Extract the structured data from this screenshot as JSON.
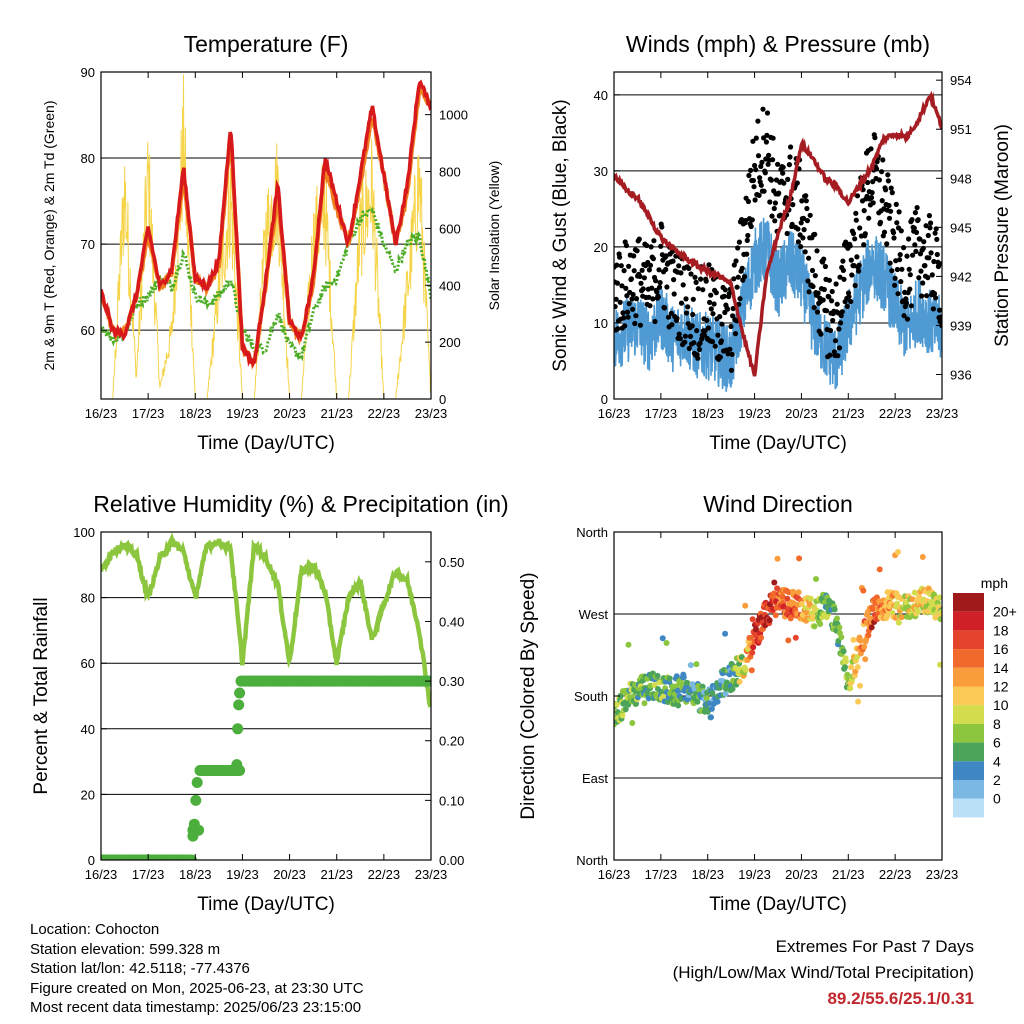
{
  "colors": {
    "t2m": "#d7191c",
    "t9m": "#f07f1e",
    "td2m": "#4dac26",
    "solar": "#f6d44a",
    "wind": "#4f9ad2",
    "gust": "#000000",
    "pressure": "#a51d22",
    "rh": "#8cc63f",
    "precip": "#4cae3c",
    "extremes": "#c1272d"
  },
  "x_ticks": [
    "16/23",
    "17/23",
    "18/23",
    "19/23",
    "20/23",
    "21/23",
    "22/23",
    "23/23"
  ],
  "xlabel": "Time (Day/UTC)",
  "panels": {
    "temperature": {
      "title": "Temperature (F)",
      "ylabel_left": "2m & 9m T (Red, Orange) & 2m Td (Green)",
      "ylabel_right": "Solar Insolation (Yellow)",
      "yticks_left": [
        "60",
        "70",
        "80",
        "90"
      ],
      "yticks_right": [
        "0",
        "200",
        "400",
        "600",
        "800",
        "1000"
      ]
    },
    "winds": {
      "title": "Winds (mph) & Pressure (mb)",
      "ylabel_left": "Sonic Wind & Gust (Blue, Black)",
      "ylabel_right": "Station Pressure (Maroon)",
      "yticks_left": [
        "0",
        "10",
        "20",
        "30",
        "40"
      ],
      "yticks_right": [
        "936",
        "939",
        "942",
        "945",
        "948",
        "951",
        "954"
      ]
    },
    "humidity": {
      "title": "Relative Humidity (%) & Precipitation (in)",
      "ylabel_left": "Percent & Total Rainfall",
      "yticks_left": [
        "0",
        "20",
        "40",
        "60",
        "80",
        "100"
      ],
      "yticks_right": [
        "0.00",
        "0.10",
        "0.20",
        "0.30",
        "0.40",
        "0.50"
      ]
    },
    "direction": {
      "title": "Wind Direction",
      "ylabel_left": "Direction (Colored By Speed)",
      "yticks_left": [
        "North",
        "East",
        "South",
        "West",
        "North"
      ],
      "colorbar_title": "mph",
      "colorbar_labels": [
        "20+",
        "18",
        "16",
        "14",
        "12",
        "10",
        "8",
        "6",
        "4",
        "2",
        "0"
      ],
      "colorbar_colors": [
        "#a01a1c",
        "#cf2127",
        "#e4442b",
        "#f2692c",
        "#f99c3b",
        "#fbc956",
        "#d3dc4c",
        "#8cc63f",
        "#4ca45a",
        "#3f87c2",
        "#7bb8e3",
        "#b9e0f7"
      ]
    }
  },
  "chart_data": [
    {
      "type": "line",
      "title": "Temperature (F)",
      "xlabel": "Time (Day/UTC)",
      "ylabel": "2m & 9m T (Red, Orange) & 2m Td (Green)",
      "y2label": "Solar Insolation (Yellow)",
      "x": [
        16.0,
        16.25,
        16.5,
        16.75,
        17.0,
        17.25,
        17.5,
        17.75,
        18.0,
        18.25,
        18.5,
        18.75,
        19.0,
        19.25,
        19.5,
        19.75,
        20.0,
        20.25,
        20.5,
        20.75,
        21.0,
        21.25,
        21.5,
        21.75,
        22.0,
        22.25,
        22.5,
        22.75,
        23.0
      ],
      "ylim": [
        52,
        90
      ],
      "y2lim": [
        0,
        1150
      ],
      "series": [
        {
          "name": "2m T",
          "values": [
            64.5,
            60,
            59.5,
            64,
            72,
            65,
            67,
            79,
            66,
            65,
            68,
            84,
            58,
            56,
            66,
            77,
            61,
            59,
            66,
            80,
            75,
            70,
            78,
            86,
            78,
            70,
            77,
            89,
            86
          ]
        },
        {
          "name": "9m T",
          "values": [
            64.5,
            60,
            59.5,
            64,
            71,
            65,
            66.5,
            78,
            66,
            65,
            67.5,
            83,
            58,
            56,
            65.5,
            76,
            61,
            59,
            65.5,
            79,
            74,
            70,
            77,
            85,
            78,
            70,
            76,
            88,
            86
          ]
        },
        {
          "name": "2m Td",
          "values": [
            60.5,
            59,
            59.5,
            63,
            64,
            66,
            65,
            69,
            64,
            63,
            64,
            66,
            60,
            58,
            58,
            62,
            58,
            57,
            62,
            65,
            66,
            70,
            73,
            74,
            70,
            67,
            70,
            71,
            64
          ]
        },
        {
          "name": "Solar Insolation",
          "values": [
            0,
            0,
            950,
            100,
            1000,
            50,
            300,
            1150,
            0,
            0,
            500,
            900,
            0,
            0,
            750,
            950,
            0,
            0,
            700,
            900,
            0,
            0,
            750,
            950,
            0,
            0,
            500,
            1000,
            0
          ]
        }
      ]
    },
    {
      "type": "scatter",
      "title": "Winds (mph) & Pressure (mb)",
      "xlabel": "Time (Day/UTC)",
      "ylabel": "Sonic Wind & Gust (Blue, Black)",
      "y2label": "Station Pressure (Maroon)",
      "x": [
        16.0,
        16.25,
        16.5,
        16.75,
        17.0,
        17.25,
        17.5,
        17.75,
        18.0,
        18.25,
        18.5,
        18.75,
        19.0,
        19.25,
        19.5,
        19.75,
        20.0,
        20.25,
        20.5,
        20.75,
        21.0,
        21.25,
        21.5,
        21.75,
        22.0,
        22.25,
        22.5,
        22.75,
        23.0
      ],
      "ylim": [
        0,
        43
      ],
      "y2lim": [
        934.5,
        954.5
      ],
      "series": [
        {
          "name": "Sonic Wind",
          "values": [
            8,
            9,
            10,
            8,
            11,
            8,
            9,
            7,
            7,
            6,
            5,
            12,
            18,
            20,
            15,
            18,
            16,
            10,
            7,
            5,
            10,
            14,
            18,
            16,
            12,
            9,
            12,
            10,
            9
          ]
        },
        {
          "name": "Gust",
          "values": [
            14,
            15,
            16,
            14,
            18,
            14,
            13,
            11,
            12,
            10,
            9,
            20,
            30,
            34,
            25,
            28,
            25,
            17,
            12,
            10,
            17,
            23,
            30,
            26,
            20,
            16,
            20,
            18,
            15
          ]
        },
        {
          "name": "Station Pressure",
          "values": [
            948.2,
            947.3,
            946.8,
            945.6,
            944.4,
            943.7,
            943.2,
            942.7,
            942.3,
            942.0,
            941.5,
            938.5,
            935.9,
            942,
            944.6,
            946.7,
            950.1,
            949.2,
            948.0,
            947.5,
            946.5,
            947.6,
            948.7,
            950.4,
            950.7,
            950.5,
            951.6,
            953.1,
            951.1
          ]
        }
      ]
    },
    {
      "type": "line",
      "title": "Relative Humidity (%) & Precipitation (in)",
      "xlabel": "Time (Day/UTC)",
      "ylabel": "Percent & Total Rainfall",
      "ylim": [
        0,
        100
      ],
      "y2lim": [
        0,
        0.55
      ],
      "x": [
        16.0,
        16.25,
        16.5,
        16.75,
        17.0,
        17.25,
        17.5,
        17.75,
        18.0,
        18.25,
        18.5,
        18.75,
        19.0,
        19.25,
        19.5,
        19.75,
        20.0,
        20.25,
        20.5,
        20.75,
        21.0,
        21.25,
        21.5,
        21.75,
        22.0,
        22.25,
        22.5,
        22.75,
        23.0
      ],
      "series": [
        {
          "name": "Relative Humidity",
          "values": [
            88,
            94,
            96,
            93,
            80,
            92,
            97,
            94,
            80,
            96,
            97,
            95,
            60,
            96,
            92,
            84,
            60,
            88,
            90,
            82,
            60,
            80,
            85,
            67,
            78,
            88,
            85,
            70,
            45
          ]
        },
        {
          "name": "Total Rainfall",
          "values": [
            0,
            0,
            0,
            0,
            0,
            0,
            0,
            0,
            0.05,
            0.15,
            0.15,
            0.15,
            0.3,
            0.3,
            0.3,
            0.3,
            0.3,
            0.3,
            0.3,
            0.3,
            0.3,
            0.3,
            0.3,
            0.3,
            0.3,
            0.3,
            0.3,
            0.3,
            0.3
          ]
        }
      ]
    },
    {
      "type": "scatter",
      "title": "Wind Direction",
      "xlabel": "Time (Day/UTC)",
      "ylabel": "Direction (Colored By Speed)",
      "yticks": [
        "North",
        "East",
        "South",
        "West",
        "North"
      ],
      "x": [
        16.0,
        16.25,
        16.5,
        16.75,
        17.0,
        17.25,
        17.5,
        17.75,
        18.0,
        18.25,
        18.5,
        18.75,
        19.0,
        19.25,
        19.5,
        19.75,
        20.0,
        20.25,
        20.5,
        20.75,
        21.0,
        21.25,
        21.5,
        21.75,
        22.0,
        22.25,
        22.5,
        22.75,
        23.0
      ],
      "ylim": [
        0,
        360
      ],
      "series": [
        {
          "name": "Direction",
          "values": [
            160,
            175,
            185,
            190,
            190,
            185,
            190,
            180,
            175,
            190,
            200,
            215,
            245,
            270,
            285,
            280,
            280,
            270,
            280,
            260,
            190,
            235,
            270,
            280,
            280,
            275,
            285,
            285,
            270
          ]
        },
        {
          "name": "Speed",
          "values": [
            8,
            8,
            7,
            6,
            7,
            6,
            6,
            5,
            5,
            4,
            5,
            10,
            18,
            20,
            16,
            17,
            15,
            10,
            7,
            6,
            9,
            14,
            18,
            15,
            12,
            10,
            12,
            10,
            9
          ]
        }
      ]
    }
  ],
  "footer": {
    "location": "Location: Cohocton",
    "elevation": "Station elevation: 599.328 m",
    "latlon": "Station lat/lon: 42.5118; -77.4376",
    "created": "Figure created on Mon, 2025-06-23, at 23:30 UTC",
    "recent": "Most recent data timestamp: 2025/06/23 23:15:00",
    "extremes_title": "Extremes For Past 7 Days",
    "extremes_sub": "(High/Low/Max Wind/Total Precipitation)",
    "extremes_values": "89.2/55.6/25.1/0.31"
  }
}
